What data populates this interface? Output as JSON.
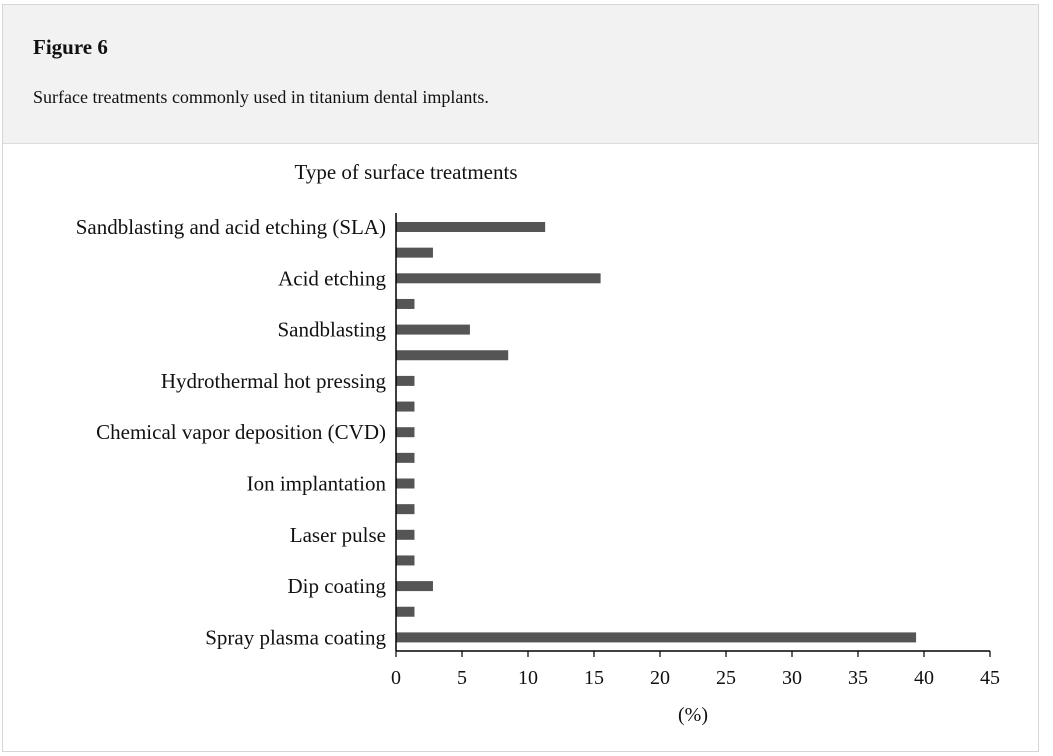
{
  "figure": {
    "label": "Figure 6",
    "caption": "Surface treatments commonly used in titanium dental implants."
  },
  "chart_data": {
    "type": "bar",
    "orientation": "horizontal",
    "title": "Type of surface treatments",
    "xlabel": "(%)",
    "ylabel": "",
    "xlim": [
      0,
      45
    ],
    "xticks": [
      0,
      5,
      10,
      15,
      20,
      25,
      30,
      35,
      40,
      45
    ],
    "grid": false,
    "bar_color": "#555555",
    "categories": [
      "Sandblasting and acid etching (SLA)",
      "",
      "Acid etching",
      "",
      "Sandblasting",
      "",
      "Hydrothermal hot pressing",
      "",
      "Chemical vapor deposition (CVD)",
      "",
      "Ion implantation",
      "",
      "Laser pulse",
      "",
      "Dip coating",
      "",
      "Spray plasma coating"
    ],
    "values": [
      11.3,
      2.8,
      15.5,
      1.4,
      5.6,
      8.5,
      1.4,
      1.4,
      1.4,
      1.4,
      1.4,
      1.4,
      1.4,
      1.4,
      2.8,
      1.4,
      39.4
    ]
  }
}
